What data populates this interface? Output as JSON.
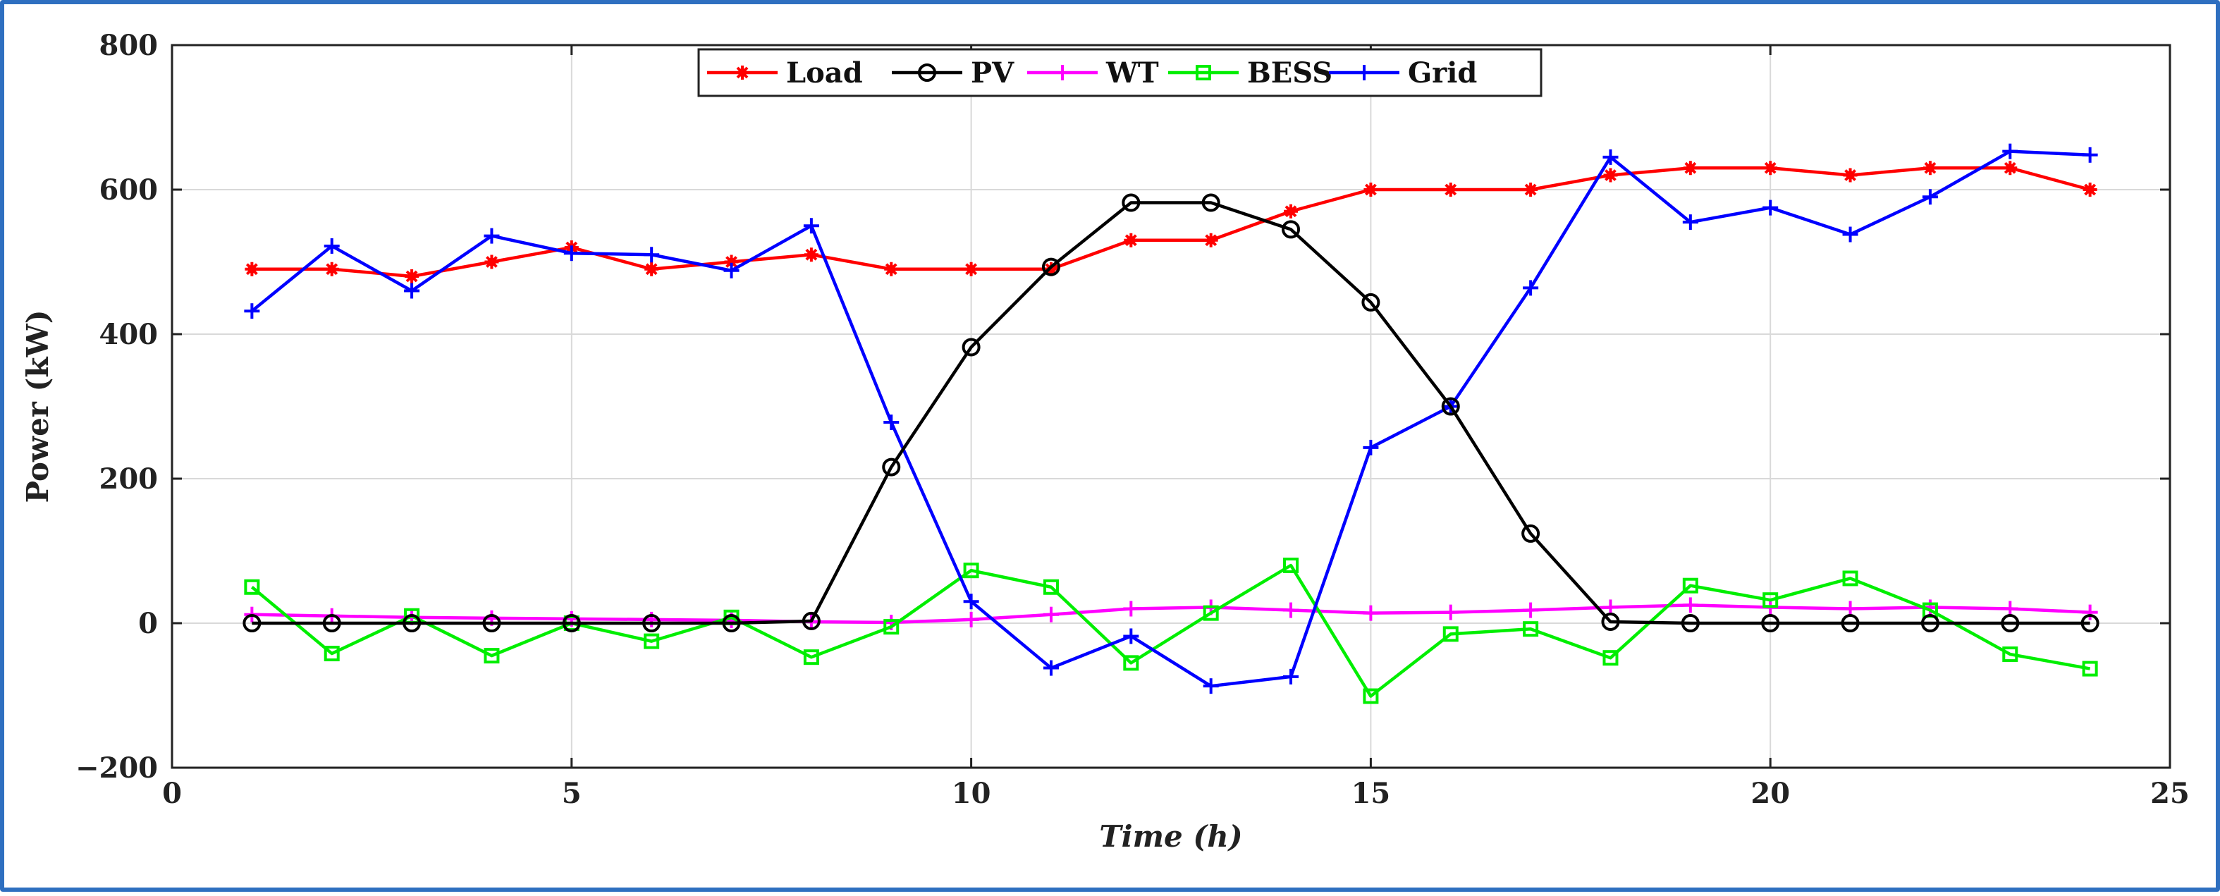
{
  "chart_data": {
    "type": "line",
    "title": "",
    "xlabel": "Time (h)",
    "ylabel": "Power (kW)",
    "xlim": [
      0,
      25
    ],
    "ylim": [
      -200,
      800
    ],
    "xticks": [
      0,
      5,
      10,
      15,
      20,
      25
    ],
    "xtick_labels": [
      "0",
      "5",
      "10",
      "15",
      "20",
      "25"
    ],
    "yticks": [
      -200,
      0,
      200,
      400,
      600,
      800
    ],
    "ytick_labels": [
      "−200",
      "0",
      "200",
      "400",
      "600",
      "800"
    ],
    "grid": true,
    "legend_position": "top-center",
    "x": [
      1,
      2,
      3,
      4,
      5,
      6,
      7,
      8,
      9,
      10,
      11,
      12,
      13,
      14,
      15,
      16,
      17,
      18,
      19,
      20,
      21,
      22,
      23,
      24
    ],
    "series": [
      {
        "name": "Load",
        "color": "#ff0000",
        "marker": "asterisk",
        "values": [
          490,
          490,
          480,
          500,
          520,
          490,
          500,
          510,
          490,
          490,
          490,
          530,
          530,
          570,
          600,
          600,
          600,
          620,
          630,
          630,
          620,
          630,
          630,
          600
        ]
      },
      {
        "name": "PV",
        "color": "#000000",
        "marker": "circle",
        "values": [
          0,
          0,
          0,
          0,
          0,
          0,
          0,
          3,
          216,
          382,
          493,
          582,
          582,
          545,
          444,
          300,
          124,
          2,
          0,
          0,
          0,
          0,
          0,
          0
        ]
      },
      {
        "name": "WT",
        "color": "#ff00ff",
        "marker": "plus",
        "values": [
          12,
          10,
          8,
          7,
          6,
          5,
          4,
          2,
          1,
          5,
          12,
          20,
          22,
          18,
          14,
          15,
          18,
          22,
          25,
          22,
          20,
          22,
          20,
          15
        ]
      },
      {
        "name": "BESS",
        "color": "#00ee00",
        "marker": "square",
        "values": [
          50,
          -42,
          10,
          -45,
          0,
          -25,
          8,
          -47,
          -5,
          73,
          50,
          -55,
          14,
          80,
          -101,
          -15,
          -8,
          -48,
          52,
          32,
          62,
          18,
          -43,
          -63
        ]
      },
      {
        "name": "Grid",
        "color": "#0000ff",
        "marker": "plus",
        "values": [
          432,
          522,
          460,
          536,
          512,
          510,
          488,
          550,
          278,
          30,
          -62,
          -18,
          -87,
          -74,
          243,
          300,
          464,
          645,
          555,
          575,
          538,
          590,
          653,
          648
        ]
      }
    ]
  }
}
